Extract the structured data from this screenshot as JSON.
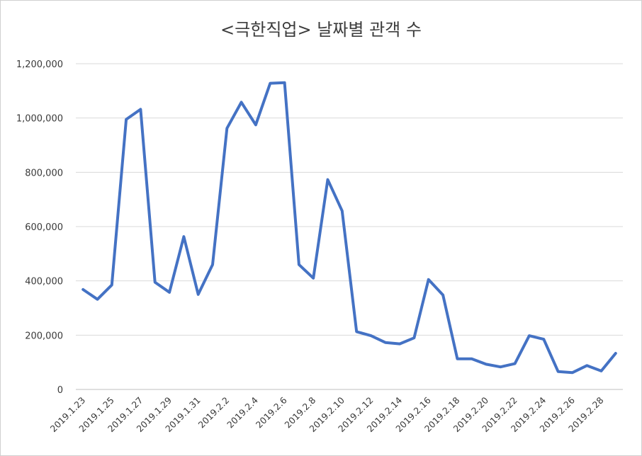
{
  "chart_data": {
    "type": "line",
    "title": "<극한직업> 날짜별 관객 수",
    "xlabel": "",
    "ylabel": "",
    "ylim": [
      0,
      1200000
    ],
    "yticks": [
      0,
      200000,
      400000,
      600000,
      800000,
      1000000,
      1200000
    ],
    "ytick_labels": [
      "0",
      "200,000",
      "400,000",
      "600,000",
      "800,000",
      "1,000,000",
      "1,200,000"
    ],
    "grid": true,
    "legend": "none",
    "colors": {
      "line": "#4472C4",
      "grid": "#d9d9d9",
      "axis": "#bfbfbf"
    },
    "x": [
      "2019.1.23",
      "2019.1.24",
      "2019.1.25",
      "2019.1.26",
      "2019.1.27",
      "2019.1.28",
      "2019.1.29",
      "2019.1.30",
      "2019.1.31",
      "2019.2.1",
      "2019.2.2",
      "2019.2.3",
      "2019.2.4",
      "2019.2.5",
      "2019.2.6",
      "2019.2.7",
      "2019.2.8",
      "2019.2.9",
      "2019.2.10",
      "2019.2.11",
      "2019.2.12",
      "2019.2.13",
      "2019.2.14",
      "2019.2.15",
      "2019.2.16",
      "2019.2.17",
      "2019.2.18",
      "2019.2.19",
      "2019.2.20",
      "2019.2.21",
      "2019.2.22",
      "2019.2.23",
      "2019.2.24",
      "2019.2.25",
      "2019.2.26",
      "2019.2.27",
      "2019.2.28",
      "2019.3.1"
    ],
    "xtick_labels": [
      "2019.1.23",
      "",
      "2019.1.25",
      "",
      "2019.1.27",
      "",
      "2019.1.29",
      "",
      "2019.1.31",
      "",
      "2019.2.2",
      "",
      "2019.2.4",
      "",
      "2019.2.6",
      "",
      "2019.2.8",
      "",
      "2019.2.10",
      "",
      "2019.2.12",
      "",
      "2019.2.14",
      "",
      "2019.2.16",
      "",
      "2019.2.18",
      "",
      "2019.2.20",
      "",
      "2019.2.22",
      "",
      "2019.2.24",
      "",
      "2019.2.26",
      "",
      "2019.2.28",
      ""
    ],
    "values": [
      368000,
      332000,
      385000,
      995000,
      1032000,
      395000,
      358000,
      563000,
      350000,
      460000,
      962000,
      1058000,
      975000,
      1128000,
      1130000,
      460000,
      410000,
      773000,
      658000,
      213000,
      198000,
      173000,
      168000,
      190000,
      405000,
      348000,
      113000,
      113000,
      93000,
      83000,
      95000,
      198000,
      185000,
      66000,
      62000,
      88000,
      68000,
      133000
    ]
  }
}
